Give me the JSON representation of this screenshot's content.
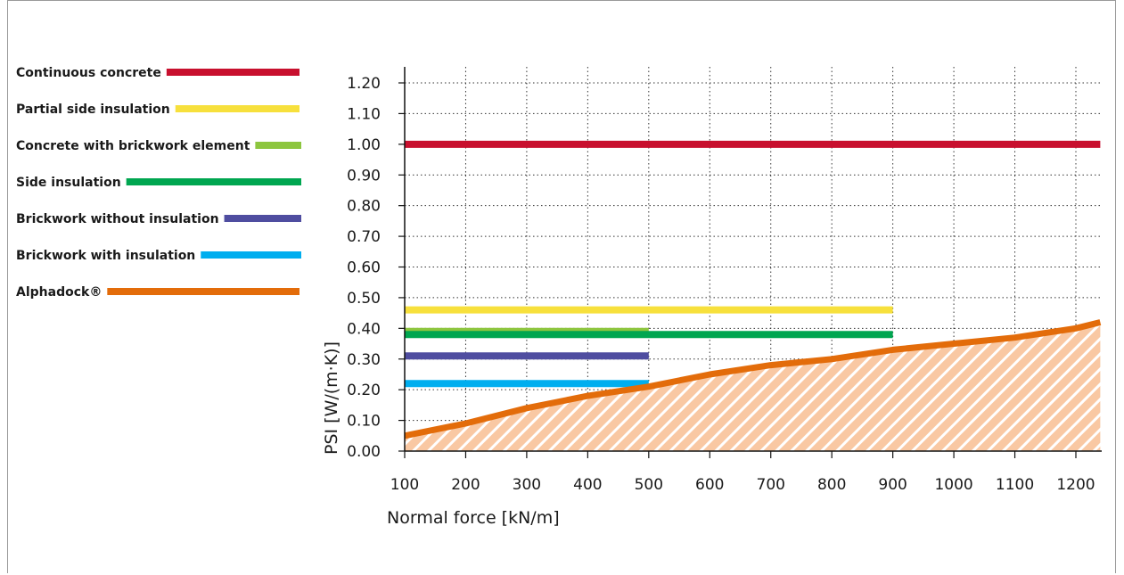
{
  "chart_data": {
    "type": "line",
    "title": "",
    "xlabel": "Normal force [kN/m]",
    "ylabel": "PSI [W/(m·K)]",
    "xlim": [
      100,
      1240
    ],
    "ylim": [
      0,
      1.25
    ],
    "x_ticks": [
      100,
      200,
      300,
      400,
      500,
      600,
      700,
      800,
      900,
      1000,
      1100,
      1200
    ],
    "y_ticks": [
      0.0,
      0.1,
      0.2,
      0.3,
      0.4,
      0.5,
      0.6,
      0.7,
      0.8,
      0.9,
      1.0,
      1.1,
      1.2
    ],
    "y_tick_labels": [
      "0.00",
      "0.10",
      "0.20",
      "0.30",
      "0.40",
      "0.50",
      "0.60",
      "0.70",
      "0.80",
      "0.90",
      "1.00",
      "1.10",
      "1.20"
    ],
    "x_tick_labels": [
      "100",
      "200",
      "300",
      "400",
      "500",
      "600",
      "700",
      "800",
      "900",
      "1000",
      "1100",
      "1200"
    ],
    "grid": true,
    "legend_position": "left",
    "series": [
      {
        "name": "Continuous concrete",
        "color": "#c8102e",
        "kind": "hline",
        "y": 1.0,
        "x": [
          100,
          1240
        ]
      },
      {
        "name": "Partial side insulation",
        "color": "#f7e03c",
        "kind": "hline",
        "y": 0.46,
        "x": [
          100,
          900
        ]
      },
      {
        "name": "Concrete with brickwork element",
        "color": "#8dc63f",
        "kind": "hline",
        "y": 0.39,
        "x": [
          100,
          500
        ]
      },
      {
        "name": "Side insulation",
        "color": "#00a650",
        "kind": "hline",
        "y": 0.38,
        "x": [
          100,
          900
        ]
      },
      {
        "name": "Brickwork without insulation",
        "color": "#4f4da0",
        "kind": "hline",
        "y": 0.31,
        "x": [
          100,
          500
        ]
      },
      {
        "name": "Brickwork with insulation",
        "color": "#00aeef",
        "kind": "hline",
        "y": 0.22,
        "x": [
          100,
          500
        ]
      },
      {
        "name": "Alphadock®",
        "color": "#e36c0a",
        "kind": "curve",
        "x": [
          100,
          200,
          300,
          400,
          500,
          600,
          700,
          800,
          900,
          1000,
          1100,
          1200,
          1240
        ],
        "values": [
          0.05,
          0.09,
          0.14,
          0.18,
          0.21,
          0.25,
          0.28,
          0.3,
          0.33,
          0.35,
          0.37,
          0.4,
          0.42
        ]
      }
    ]
  }
}
